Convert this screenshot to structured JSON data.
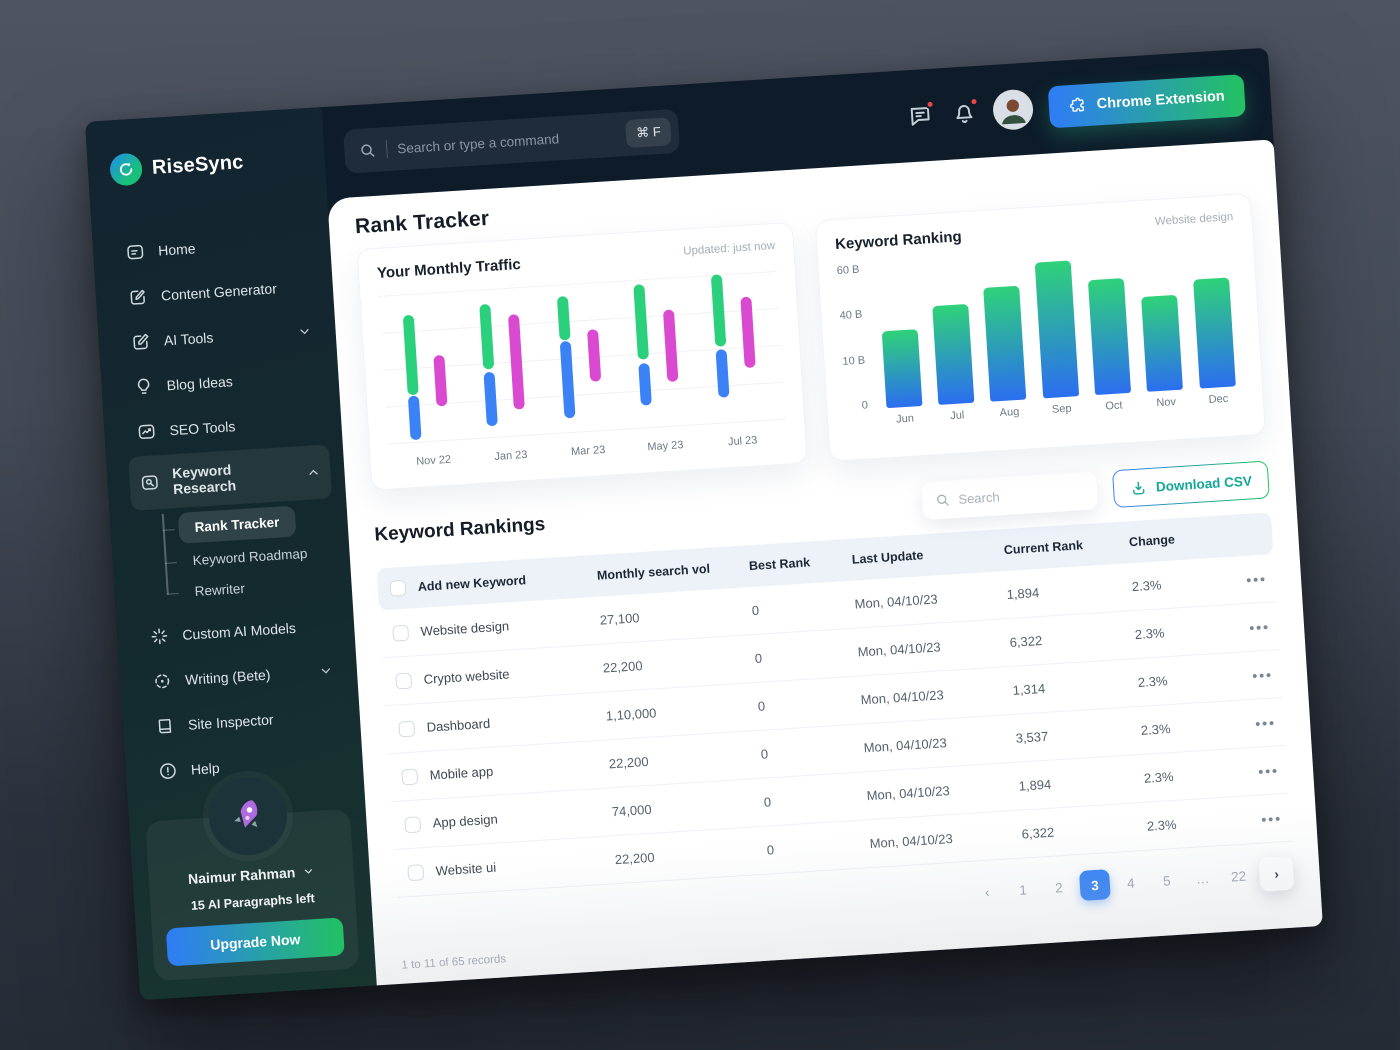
{
  "brand": {
    "name": "RiseSync"
  },
  "topbar": {
    "search_placeholder": "Search or type a command",
    "shortcut": "⌘ F",
    "chrome_button": "Chrome Extension"
  },
  "sidebar": {
    "items": [
      {
        "label": "Home"
      },
      {
        "label": "Content Generator"
      },
      {
        "label": "AI Tools",
        "expandable": true
      },
      {
        "label": "Blog Ideas"
      },
      {
        "label": "SEO Tools"
      },
      {
        "label": "Keyword Research",
        "expandable": true,
        "active": true,
        "children": [
          {
            "label": "Rank Tracker",
            "active": true
          },
          {
            "label": "Keyword Roadmap"
          },
          {
            "label": "Rewriter"
          }
        ]
      },
      {
        "label": "Custom AI Models"
      },
      {
        "label": "Writing (Bete)",
        "expandable": true
      },
      {
        "label": "Site Inspector"
      },
      {
        "label": "Help"
      }
    ],
    "user": {
      "name": "Naimur Rahman",
      "quota": "15 AI Paragraphs left",
      "cta": "Upgrade Now"
    }
  },
  "page": {
    "title": "Rank Tracker"
  },
  "chart_data": [
    {
      "type": "bar",
      "variant": "floating-range-bars",
      "title": "Your Monthly Traffic",
      "note": "Updated: just now",
      "categories": [
        "Nov 22",
        "Jan 23",
        "Mar 23",
        "May 23",
        "Jul 23"
      ],
      "series": [
        {
          "name": "traffic-high",
          "color": "#2bd07c",
          "ranges_pct": [
            [
              33,
              86
            ],
            [
              47,
              90
            ],
            [
              63,
              92
            ],
            [
              47,
              97
            ],
            [
              52,
              100
            ]
          ]
        },
        {
          "name": "traffic-low",
          "color": "#3b82f6",
          "ranges_pct": [
            [
              3,
              32
            ],
            [
              9,
              45
            ],
            [
              11,
              62
            ],
            [
              16,
              44
            ],
            [
              18,
              50
            ]
          ]
        },
        {
          "name": "traffic-alt",
          "color": "#d94ad1",
          "ranges_pct": [
            [
              24,
              58
            ],
            [
              19,
              82
            ],
            [
              34,
              69
            ],
            [
              31,
              79
            ],
            [
              37,
              84
            ]
          ]
        }
      ],
      "grid": true,
      "legend": false
    },
    {
      "type": "bar",
      "title": "Keyword Ranking",
      "badge": "Website design",
      "categories": [
        "Jun",
        "Jul",
        "Aug",
        "Sep",
        "Oct",
        "Nov",
        "Dec"
      ],
      "values_B": [
        35,
        48,
        55,
        65,
        56,
        45,
        52
      ],
      "bar_heights_pct": [
        52,
        67,
        77,
        92,
        78,
        64,
        74
      ],
      "yticks": [
        "60 B",
        "40 B",
        "10 B",
        "0"
      ],
      "ylim_B": [
        0,
        70
      ],
      "bar_gradient": [
        "#2fd279",
        "#2b6ef0"
      ],
      "grid": false,
      "legend": false
    }
  ],
  "table": {
    "title": "Keyword Rankings",
    "search_placeholder": "Search",
    "download_label": "Download CSV",
    "columns": [
      "Add new Keyword",
      "Monthly search vol",
      "Best Rank",
      "Last Update",
      "Current Rank",
      "Change"
    ],
    "rows": [
      {
        "keyword": "Website design",
        "volume": "27,100",
        "best": "0",
        "updated": "Mon, 04/10/23",
        "rank": "1,894",
        "change": "2.3%"
      },
      {
        "keyword": "Crypto website",
        "volume": "22,200",
        "best": "0",
        "updated": "Mon, 04/10/23",
        "rank": "6,322",
        "change": "2.3%"
      },
      {
        "keyword": "Dashboard",
        "volume": "1,10,000",
        "best": "0",
        "updated": "Mon, 04/10/23",
        "rank": "1,314",
        "change": "2.3%"
      },
      {
        "keyword": "Mobile app",
        "volume": "22,200",
        "best": "0",
        "updated": "Mon, 04/10/23",
        "rank": "3,537",
        "change": "2.3%"
      },
      {
        "keyword": "App design",
        "volume": "74,000",
        "best": "0",
        "updated": "Mon, 04/10/23",
        "rank": "1,894",
        "change": "2.3%"
      },
      {
        "keyword": "Website ui",
        "volume": "22,200",
        "best": "0",
        "updated": "Mon, 04/10/23",
        "rank": "6,322",
        "change": "2.3%"
      }
    ],
    "records": "1 to 11 of 65 records"
  },
  "pagination": {
    "prev": "‹",
    "pages": [
      "1",
      "2",
      "3",
      "4",
      "5",
      "…",
      "22"
    ],
    "active": "3",
    "next": "›"
  },
  "colors": {
    "accent_blue": "#2f7cf6",
    "accent_green": "#22c163",
    "bar_green": "#2bd07c",
    "bar_blue": "#3b82f6",
    "bar_pink": "#d94ad1",
    "active_page": "#2f7ff7",
    "csv_teal": "#12a797",
    "sidebar_bg": "#132431",
    "topbar_bg": "#0e1c2a"
  }
}
